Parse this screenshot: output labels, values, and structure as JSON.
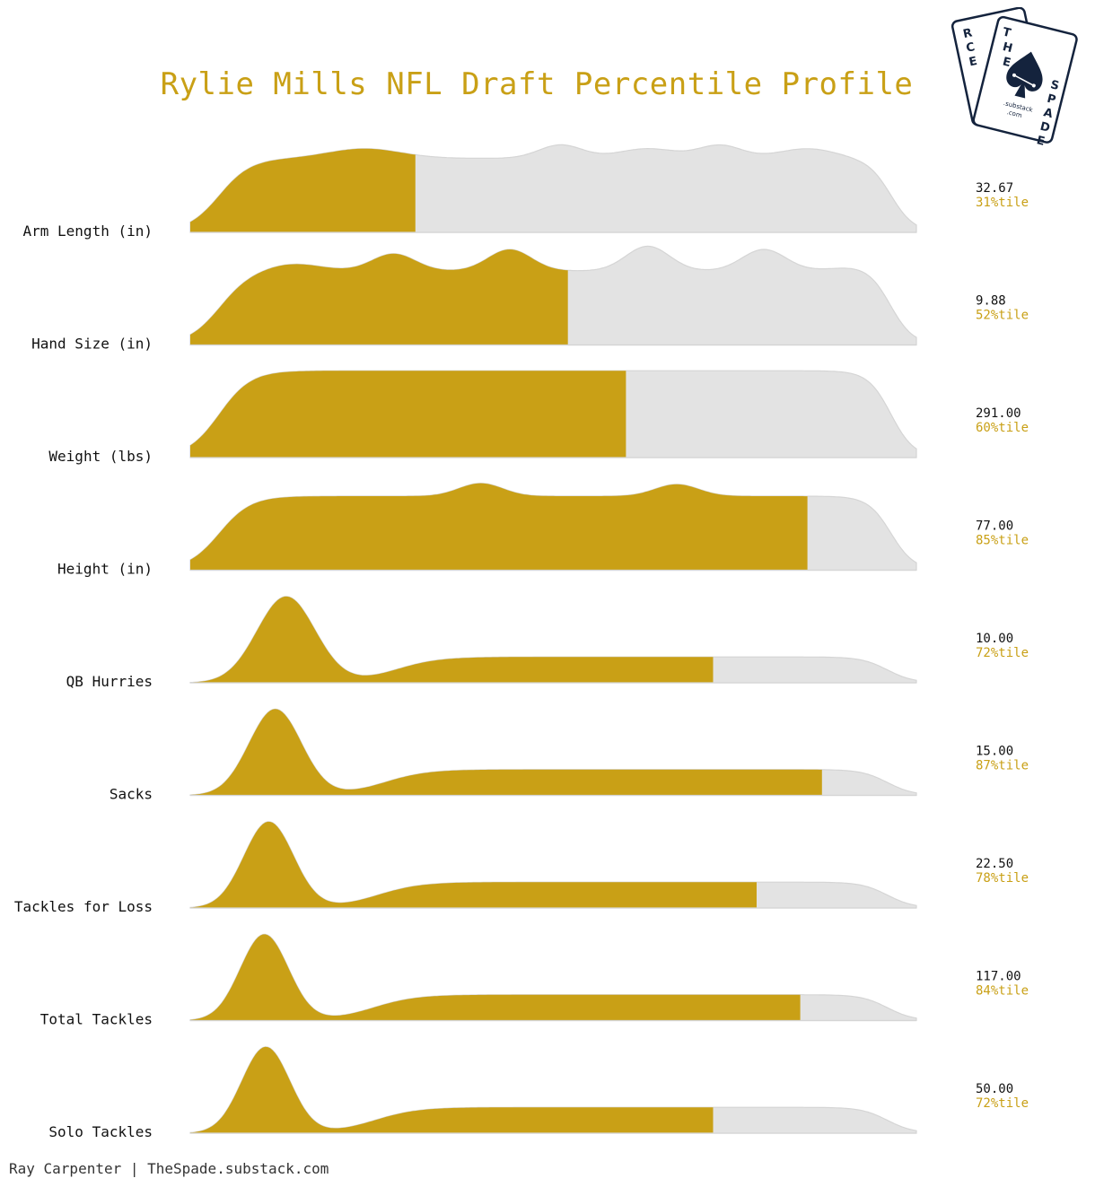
{
  "title": "Rylie Mills NFL Draft Percentile Profile",
  "footer": "Ray Carpenter | TheSpade.substack.com",
  "logo_text": {
    "left_card": "RCE",
    "right_card": "THE SPADE",
    "sub": ".substack .com"
  },
  "colors": {
    "accent": "#c9a016",
    "rest": "#e3e3e3",
    "rest_stroke": "#d5d5d5",
    "label": "#111111",
    "logo": "#14233d"
  },
  "chart_data": {
    "type": "ridgeline",
    "title": "Rylie Mills NFL Draft Percentile Profile",
    "x_scale": "percentile",
    "xlim": [
      0,
      100
    ],
    "rows": [
      {
        "label": "Arm Length (in)",
        "value": "32.67",
        "percentile": 31,
        "percentile_label": "31%tile",
        "shape": "plateau",
        "bumps": [
          [
            24,
            0.9,
            5
          ],
          [
            51,
            1.25,
            3
          ],
          [
            63,
            0.9,
            4
          ],
          [
            73,
            1.2,
            3
          ],
          [
            85,
            0.9,
            4
          ]
        ]
      },
      {
        "label": "Hand Size (in)",
        "value": "9.88",
        "percentile": 52,
        "percentile_label": "52%tile",
        "shape": "plateau",
        "bumps": [
          [
            14,
            0.7,
            4
          ],
          [
            28,
            1.6,
            3
          ],
          [
            44,
            2.0,
            3
          ],
          [
            63,
            2.3,
            3
          ],
          [
            79,
            2.0,
            3
          ],
          [
            93,
            0.5,
            4
          ]
        ]
      },
      {
        "label": "Weight (lbs)",
        "value": "291.00",
        "percentile": 60,
        "percentile_label": "60%tile",
        "shape": "plateau",
        "bumps": []
      },
      {
        "label": "Height (in)",
        "value": "77.00",
        "percentile": 85,
        "percentile_label": "85%tile",
        "shape": "plateau",
        "bumps": [
          [
            40,
            1.2,
            3
          ],
          [
            67,
            1.1,
            3
          ]
        ]
      },
      {
        "label": "QB Hurries",
        "value": "10.00",
        "percentile": 72,
        "percentile_label": "72%tile",
        "shape": "peak",
        "peak": 13.2,
        "peak_width": 4.0
      },
      {
        "label": "Sacks",
        "value": "15.00",
        "percentile": 87,
        "percentile_label": "87%tile",
        "shape": "peak",
        "peak": 11.7,
        "peak_width": 3.6
      },
      {
        "label": "Tackles for Loss",
        "value": "22.50",
        "percentile": 78,
        "percentile_label": "78%tile",
        "shape": "peak",
        "peak": 10.8,
        "peak_width": 3.4
      },
      {
        "label": "Total Tackles",
        "value": "117.00",
        "percentile": 84,
        "percentile_label": "84%tile",
        "shape": "peak",
        "peak": 10.2,
        "peak_width": 3.3
      },
      {
        "label": "Solo Tackles",
        "value": "50.00",
        "percentile": 72,
        "percentile_label": "72%tile",
        "shape": "peak",
        "peak": 10.4,
        "peak_width": 3.3
      }
    ]
  }
}
